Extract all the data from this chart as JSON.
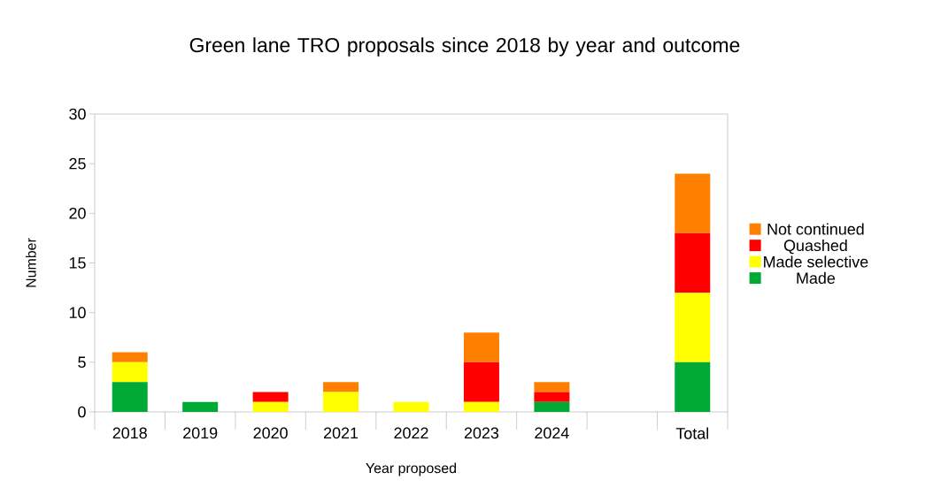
{
  "chart_data": {
    "type": "bar",
    "stacked": true,
    "title": "Green lane TRO proposals since 2018 by year and outcome",
    "xlabel": "Year proposed",
    "ylabel": "Number",
    "categories": [
      "2018",
      "2019",
      "2020",
      "2021",
      "2022",
      "2023",
      "2024",
      null,
      "Total"
    ],
    "series": [
      {
        "name": "Made",
        "color": "#00a933",
        "values": [
          3,
          1,
          0,
          0,
          0,
          0,
          1,
          0,
          5
        ]
      },
      {
        "name": "Made selective",
        "color": "#ffff00",
        "values": [
          2,
          0,
          1,
          2,
          1,
          1,
          0,
          0,
          7
        ]
      },
      {
        "name": "Quashed",
        "color": "#ff0000",
        "values": [
          0,
          0,
          1,
          0,
          0,
          4,
          1,
          0,
          6
        ]
      },
      {
        "name": "Not continued",
        "color": "#ff8000",
        "values": [
          1,
          0,
          0,
          1,
          0,
          3,
          1,
          0,
          6
        ]
      }
    ],
    "ylim": [
      0,
      30
    ],
    "yticks": [
      0,
      5,
      10,
      15,
      20,
      25,
      30
    ],
    "legend": "right"
  }
}
